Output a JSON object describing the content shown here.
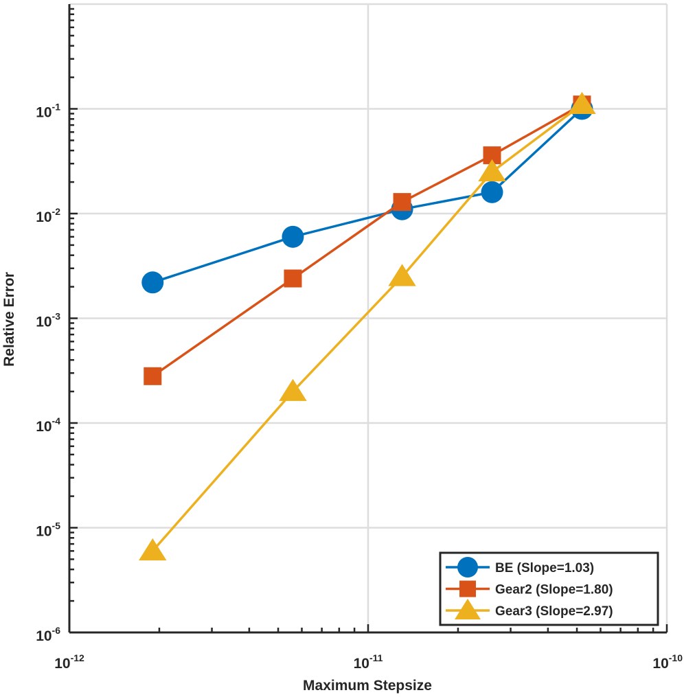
{
  "chart_data": {
    "type": "line",
    "title": "",
    "xlabel": "Maximum Stepsize",
    "ylabel": "Relative Error",
    "xscale": "log",
    "yscale": "log",
    "xlim": [
      1e-12,
      1e-10
    ],
    "ylim": [
      1e-06,
      1
    ],
    "x_ticks": [
      {
        "base": "10",
        "exp": "-12",
        "value": 1e-12
      },
      {
        "base": "10",
        "exp": "-11",
        "value": 1e-11
      },
      {
        "base": "10",
        "exp": "-10",
        "value": 1e-10
      }
    ],
    "y_ticks": [
      {
        "base": "10",
        "exp": "-6",
        "value": 1e-06
      },
      {
        "base": "10",
        "exp": "-5",
        "value": 1e-05
      },
      {
        "base": "10",
        "exp": "-4",
        "value": 0.0001
      },
      {
        "base": "10",
        "exp": "-3",
        "value": 0.001
      },
      {
        "base": "10",
        "exp": "-2",
        "value": 0.01
      },
      {
        "base": "10",
        "exp": "-1",
        "value": 0.1
      }
    ],
    "grid": true,
    "legend_position": "bottom-right",
    "series": [
      {
        "name": "BE (Slope=1.03)",
        "color": "#0072BD",
        "marker": "circle",
        "x": [
          1.9e-12,
          5.6e-12,
          1.3e-11,
          2.6e-11,
          5.2e-11
        ],
        "y": [
          0.0022,
          0.006,
          0.011,
          0.016,
          0.1
        ]
      },
      {
        "name": "Gear2 (Slope=1.80)",
        "color": "#D95319",
        "marker": "square",
        "x": [
          1.9e-12,
          5.6e-12,
          1.3e-11,
          2.6e-11,
          5.2e-11
        ],
        "y": [
          0.00028,
          0.0024,
          0.0129,
          0.036,
          0.11
        ]
      },
      {
        "name": "Gear3 (Slope=2.97)",
        "color": "#EDB120",
        "marker": "triangle",
        "x": [
          1.9e-12,
          5.6e-12,
          1.3e-11,
          2.6e-11,
          5.2e-11
        ],
        "y": [
          6e-06,
          0.0002,
          0.0025,
          0.025,
          0.11
        ]
      }
    ]
  }
}
